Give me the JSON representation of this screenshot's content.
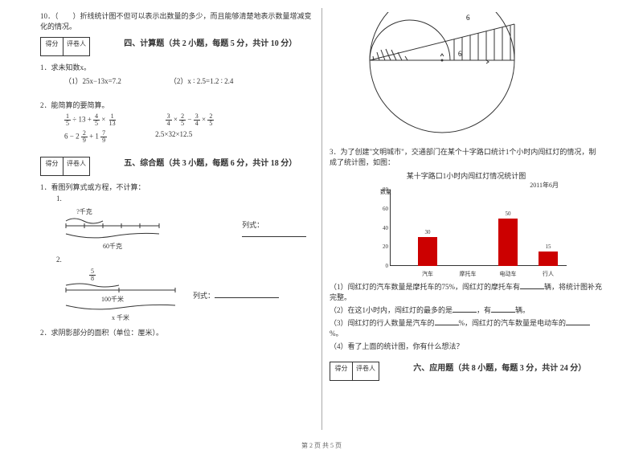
{
  "q10": "10．（　　）折线统计图不但可以表示出数量的多少，而且能够清楚地表示数量增减变化的情况。",
  "scorebox": {
    "score": "得分",
    "reviewer": "评卷人"
  },
  "section4": {
    "title": "四、计算题（共 2 小题，每题 5 分，共计 10 分）"
  },
  "s4q1": {
    "stem": "1．求未知数x。",
    "a": "（1）25x−13x=7.2",
    "b": "（2）x ∶ 2.5=1.2 ∶ 2.4"
  },
  "s4q2": {
    "stem": "2．能简算的要简算。",
    "r1a_parts": [
      "1",
      "5",
      "÷ 13 +",
      "4",
      "5",
      "×",
      "1",
      "13"
    ],
    "r1b_parts": [
      "3",
      "4",
      "×",
      "2",
      "5",
      "−",
      "3",
      "4",
      "×",
      "2",
      "5"
    ],
    "r2a_parts": [
      "6 − 2",
      "2",
      "9",
      "+ 1",
      "7",
      "9"
    ],
    "r2b": "2.5×32×12.5"
  },
  "section5": {
    "title": "五、综合题（共 3 小题，每题 6 分，共计 18 分）"
  },
  "s5q1": {
    "stem": "1．看图列算式或方程，不计算：",
    "sub1": "1.",
    "kg_q": "?千克",
    "kg_60": "60千克",
    "lieshi": "列式：",
    "sub2": "2.",
    "frac_n": "5",
    "frac_d": "8",
    "km_100": "100千米",
    "x_km": "x 千米"
  },
  "s5q2": {
    "stem": "2．求阴影部分的面积（单位：厘米）。"
  },
  "geom": {
    "top_label": "6",
    "inner_label": "6"
  },
  "s5q3": {
    "stem": "3．为了创建\"文明城市\"，交通部门在某个十字路口统计1个小时内闯红灯的情况，制成了统计图，如图：",
    "chart": {
      "title": "某十字路口1小时内闯红灯情况统计图",
      "date": "2011年6月",
      "ylabel": "数量",
      "ymax": 80,
      "ystep": 20,
      "categories": [
        "汽车",
        "摩托车",
        "电动车",
        "行人"
      ],
      "values": [
        30,
        null,
        50,
        15
      ],
      "bar_color": "#cc0000",
      "bg_color": "#ffffff"
    },
    "p1a": "（1）闯红灯的汽车数量是摩托车的75%，闯红灯的摩托车有",
    "p1b": "辆，将统计图补充完整。",
    "p2a": "（2）在这1小时内，闯红灯的最多的是",
    "p2b": "，有",
    "p2c": "辆。",
    "p3a": "（3）闯红灯的行人数量是汽车的",
    "p3b": "%，闯红灯的汽车数量是电动车的",
    "p3c": "%。",
    "p4": "（4）看了上面的统计图，你有什么想法？"
  },
  "section6": {
    "title": "六、应用题（共 8 小题，每题 3 分，共计 24 分）"
  },
  "footer": "第 2 页  共 5 页"
}
